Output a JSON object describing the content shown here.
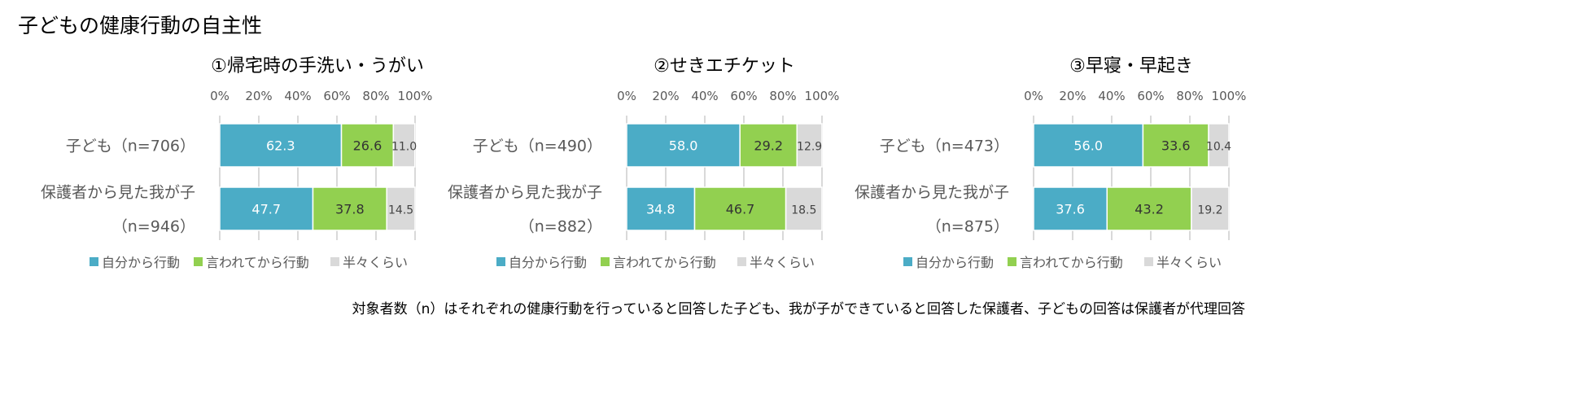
{
  "title": "子どもの健康行動の自主性",
  "footnote": "対象者数（n）はそれぞれの健康行動を行っていると回答した子ども、我が子ができていると回答した保護者、子どもの回答は保護者が代理回答",
  "colors": {
    "self": "#4bacc6",
    "told": "#92d050",
    "half": "#d9d9d9"
  },
  "chart_data": [
    {
      "type": "bar",
      "stacked": true,
      "orientation": "horizontal",
      "title": "①帰宅時の手洗い・うがい",
      "xlim": [
        0,
        100
      ],
      "ticks": [
        "0%",
        "20%",
        "40%",
        "60%",
        "80%",
        "100%"
      ],
      "grid": true,
      "legend_position": "bottom",
      "categories": [
        [
          "子ども（n=706）"
        ],
        [
          "保護者から見た我が子",
          "（n=946）"
        ]
      ],
      "series": [
        {
          "name": "自分から行動",
          "values": [
            62.3,
            47.7
          ]
        },
        {
          "name": "言われてから行動",
          "values": [
            26.6,
            37.8
          ]
        },
        {
          "name": "半々くらい",
          "values": [
            11.0,
            14.5
          ]
        }
      ]
    },
    {
      "type": "bar",
      "stacked": true,
      "orientation": "horizontal",
      "title": "②せきエチケット",
      "xlim": [
        0,
        100
      ],
      "ticks": [
        "0%",
        "20%",
        "40%",
        "60%",
        "80%",
        "100%"
      ],
      "grid": true,
      "legend_position": "bottom",
      "categories": [
        [
          "子ども（n=490）"
        ],
        [
          "保護者から見た我が子",
          "（n=882）"
        ]
      ],
      "series": [
        {
          "name": "自分から行動",
          "values": [
            58.0,
            34.8
          ]
        },
        {
          "name": "言われてから行動",
          "values": [
            29.2,
            46.7
          ]
        },
        {
          "name": "半々くらい",
          "values": [
            12.9,
            18.5
          ]
        }
      ]
    },
    {
      "type": "bar",
      "stacked": true,
      "orientation": "horizontal",
      "title": "③早寝・早起き",
      "xlim": [
        0,
        100
      ],
      "ticks": [
        "0%",
        "20%",
        "40%",
        "60%",
        "80%",
        "100%"
      ],
      "grid": true,
      "legend_position": "bottom",
      "categories": [
        [
          "子ども（n=473）"
        ],
        [
          "保護者から見た我が子",
          "（n=875）"
        ]
      ],
      "series": [
        {
          "name": "自分から行動",
          "values": [
            56.0,
            37.6
          ]
        },
        {
          "name": "言われてから行動",
          "values": [
            33.6,
            43.2
          ]
        },
        {
          "name": "半々くらい",
          "values": [
            10.4,
            19.2
          ]
        }
      ]
    }
  ]
}
